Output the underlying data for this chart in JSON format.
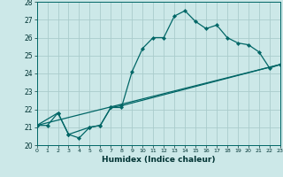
{
  "title": "",
  "xlabel": "Humidex (Indice chaleur)",
  "bg_color": "#cce8e8",
  "line_color": "#006666",
  "grid_color": "#aacccc",
  "xlim": [
    0,
    23
  ],
  "ylim": [
    20,
    28
  ],
  "xticks": [
    0,
    1,
    2,
    3,
    4,
    5,
    6,
    7,
    8,
    9,
    10,
    11,
    12,
    13,
    14,
    15,
    16,
    17,
    18,
    19,
    20,
    21,
    22,
    23
  ],
  "yticks": [
    20,
    21,
    22,
    23,
    24,
    25,
    26,
    27,
    28
  ],
  "line1_x": [
    0,
    1,
    2,
    3,
    4,
    5,
    6,
    7,
    8,
    9,
    10,
    11,
    12,
    13,
    14,
    15,
    16,
    17,
    18,
    19,
    20,
    21,
    22,
    23
  ],
  "line1_y": [
    21.1,
    21.1,
    21.8,
    20.6,
    20.4,
    21.0,
    21.1,
    22.1,
    22.1,
    24.1,
    25.4,
    26.0,
    26.0,
    27.2,
    27.5,
    26.9,
    26.5,
    26.7,
    26.0,
    25.7,
    25.6,
    25.2,
    24.3,
    24.5
  ],
  "line2_x": [
    0,
    2,
    3,
    5,
    6,
    7,
    8,
    23
  ],
  "line2_y": [
    21.1,
    21.8,
    20.6,
    21.0,
    21.1,
    22.1,
    22.2,
    24.5
  ],
  "line3_x": [
    0,
    23
  ],
  "line3_y": [
    21.1,
    24.5
  ]
}
